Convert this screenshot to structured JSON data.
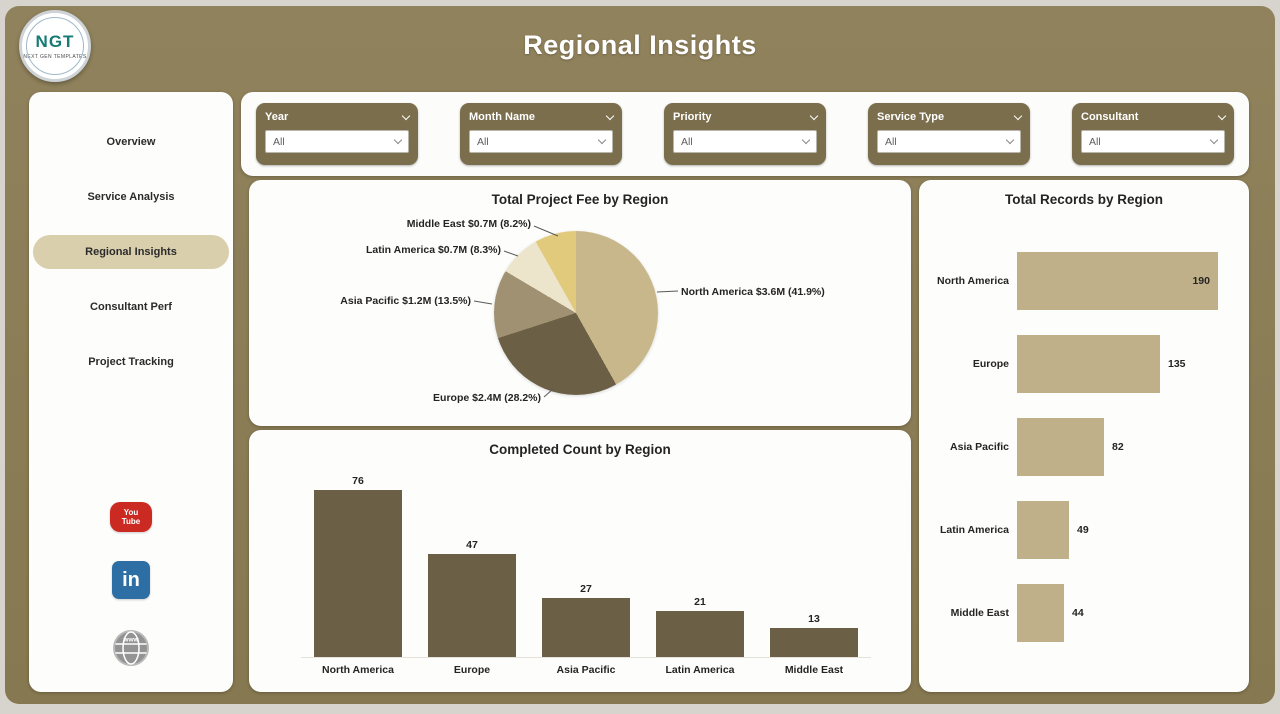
{
  "header": {
    "title": "Regional Insights"
  },
  "logo": {
    "abbr": "NGT",
    "subtext": "NEXT GEN TEMPLATES"
  },
  "sidebar": {
    "items": [
      {
        "label": "Overview",
        "active": false
      },
      {
        "label": "Service Analysis",
        "active": false
      },
      {
        "label": "Regional Insights",
        "active": true
      },
      {
        "label": "Consultant Perf",
        "active": false
      },
      {
        "label": "Project Tracking",
        "active": false
      }
    ],
    "social": {
      "youtube": {
        "line1": "You",
        "line2": "Tube"
      },
      "linkedin": {
        "text": "in"
      },
      "website": {
        "text": "www"
      }
    }
  },
  "filters": {
    "slicers": [
      {
        "label": "Year",
        "value": "All"
      },
      {
        "label": "Month Name",
        "value": "All"
      },
      {
        "label": "Priority",
        "value": "All"
      },
      {
        "label": "Service Type",
        "value": "All"
      },
      {
        "label": "Consultant",
        "value": "All"
      }
    ]
  },
  "chart_data": [
    {
      "type": "pie",
      "title": "Total Project Fee by Region",
      "categories": [
        "North America",
        "Europe",
        "Asia Pacific",
        "Latin America",
        "Middle East"
      ],
      "values_millions": [
        3.6,
        2.4,
        1.2,
        0.7,
        0.7
      ],
      "percents": [
        41.9,
        28.2,
        13.5,
        8.3,
        8.2
      ],
      "labels": [
        "North America $3.6M (41.9%)",
        "Europe $2.4M (28.2%)",
        "Asia Pacific $1.2M (13.5%)",
        "Latin America $0.7M (8.3%)",
        "Middle East $0.7M (8.2%)"
      ],
      "colors": [
        "#c9b78c",
        "#6b5f45",
        "#a09173",
        "#ece4cb",
        "#e2ca7d"
      ],
      "legend": "none"
    },
    {
      "type": "bar",
      "title": "Completed Count by Region",
      "categories": [
        "North America",
        "Europe",
        "Asia Pacific",
        "Latin America",
        "Middle East"
      ],
      "values": [
        76,
        47,
        27,
        21,
        13
      ],
      "color": "#6b5f45",
      "ylim": [
        0,
        80
      ]
    },
    {
      "type": "bar",
      "orientation": "horizontal",
      "title": "Total Records by Region",
      "categories": [
        "North America",
        "Europe",
        "Asia Pacific",
        "Latin America",
        "Middle East"
      ],
      "values": [
        190,
        135,
        82,
        49,
        44
      ],
      "color": "#bfb089",
      "xlim": [
        0,
        200
      ]
    }
  ]
}
